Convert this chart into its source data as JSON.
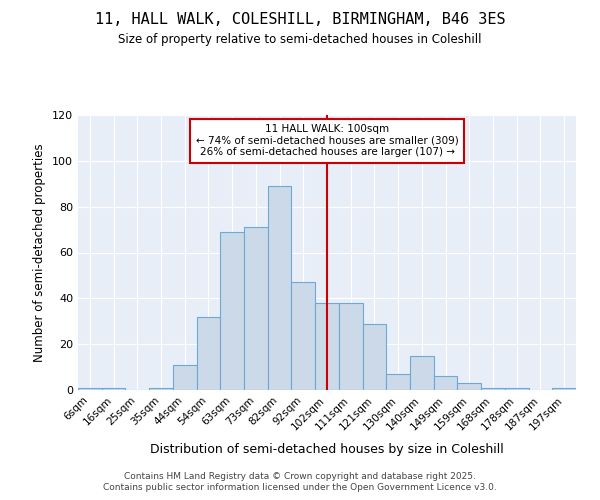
{
  "title1": "11, HALL WALK, COLESHILL, BIRMINGHAM, B46 3ES",
  "title2": "Size of property relative to semi-detached houses in Coleshill",
  "xlabel": "Distribution of semi-detached houses by size in Coleshill",
  "ylabel": "Number of semi-detached properties",
  "bar_labels": [
    "6sqm",
    "16sqm",
    "25sqm",
    "35sqm",
    "44sqm",
    "54sqm",
    "63sqm",
    "73sqm",
    "82sqm",
    "92sqm",
    "102sqm",
    "111sqm",
    "121sqm",
    "130sqm",
    "140sqm",
    "149sqm",
    "159sqm",
    "168sqm",
    "178sqm",
    "187sqm",
    "197sqm"
  ],
  "bar_heights": [
    1,
    1,
    0,
    1,
    11,
    32,
    69,
    71,
    89,
    47,
    38,
    38,
    29,
    7,
    15,
    6,
    3,
    1,
    1,
    0,
    1
  ],
  "bar_color": "#ccd9e8",
  "bar_edge_color": "#6aaad4",
  "vline_index": 10,
  "vline_label": "11 HALL WALK: 100sqm",
  "annotation_smaller": "← 74% of semi-detached houses are smaller (309)",
  "annotation_larger": "26% of semi-detached houses are larger (107) →",
  "vline_color": "#cc0000",
  "annotation_box_edge_color": "#cc0000",
  "ylim": [
    0,
    120
  ],
  "yticks": [
    0,
    20,
    40,
    60,
    80,
    100,
    120
  ],
  "background_color": "#e8eef8",
  "grid_color": "#ffffff",
  "footer1": "Contains HM Land Registry data © Crown copyright and database right 2025.",
  "footer2": "Contains public sector information licensed under the Open Government Licence v3.0."
}
